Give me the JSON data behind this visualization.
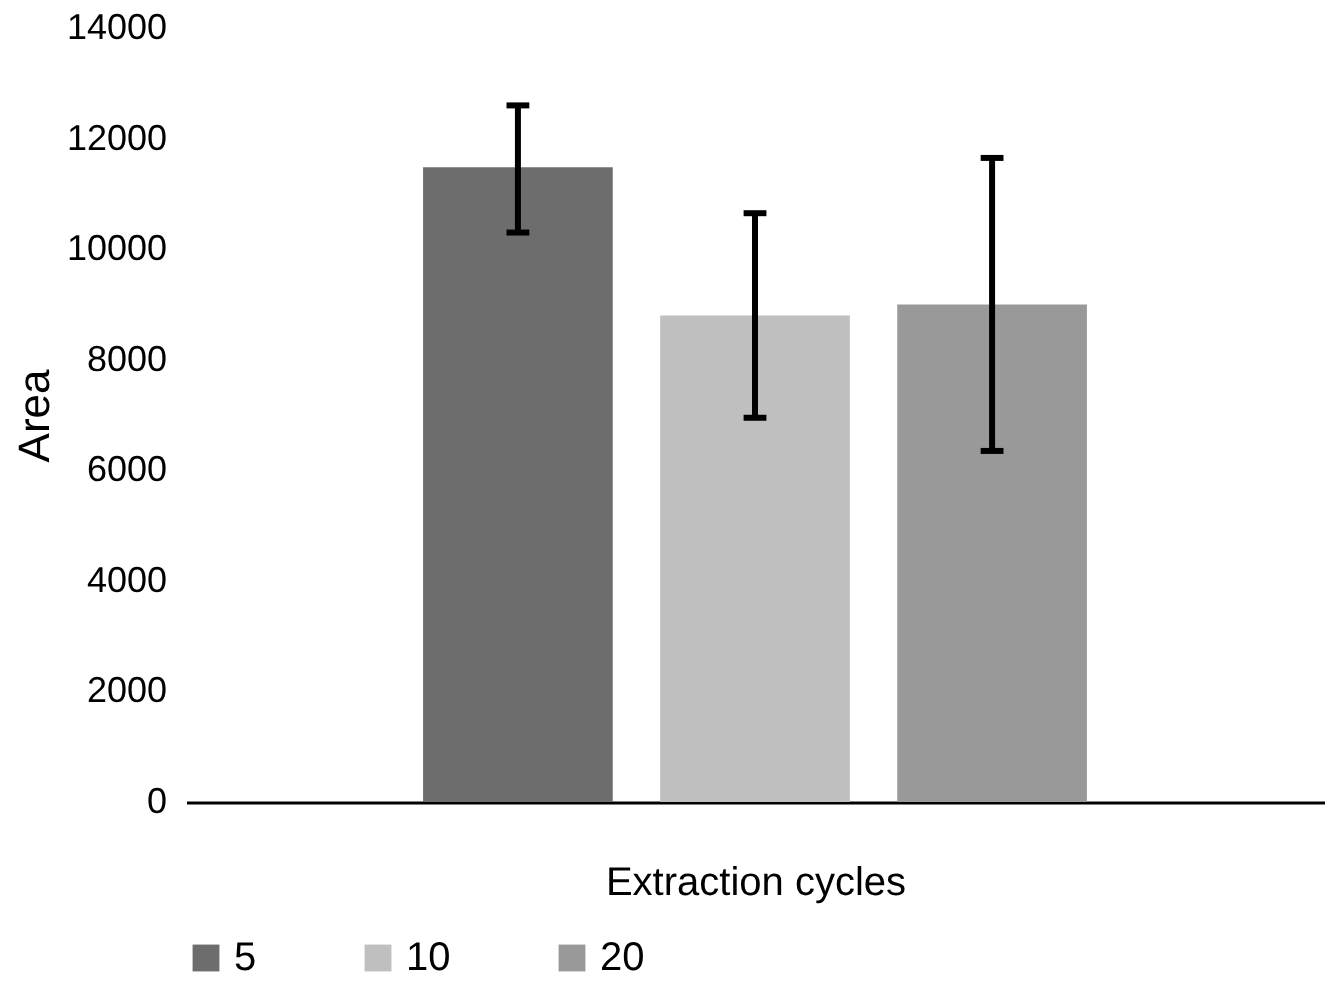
{
  "chart_data": {
    "type": "bar",
    "xlabel": "Extraction cycles",
    "ylabel": "Area",
    "categories": [
      null
    ],
    "series": [
      {
        "name": "5",
        "color": "#6d6d6d",
        "values": [
          11480
        ],
        "errors": [
          [
            10300,
            12600
          ]
        ]
      },
      {
        "name": "10",
        "color": "#bfbfbf",
        "values": [
          8800
        ],
        "errors": [
          [
            6950,
            10650
          ]
        ]
      },
      {
        "name": "20",
        "color": "#999999",
        "values": [
          9000
        ],
        "errors": [
          [
            6350,
            11650
          ]
        ]
      }
    ],
    "ylim": [
      0,
      14000
    ],
    "yticks": [
      0,
      2000,
      4000,
      6000,
      8000,
      10000,
      12000,
      14000
    ],
    "grid": false,
    "legend": "bottom"
  }
}
